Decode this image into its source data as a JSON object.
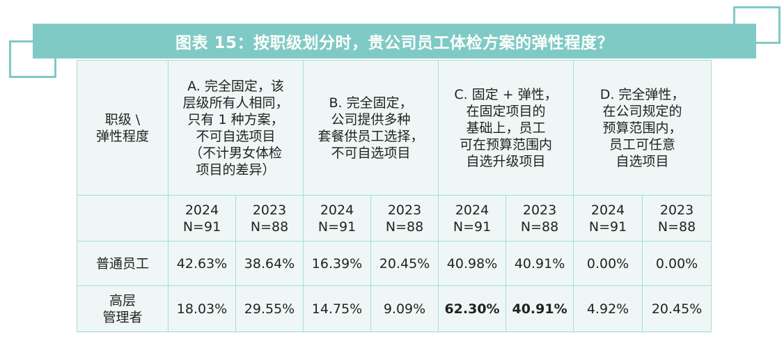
{
  "title": "图表 15：按职级划分时，贵公司员工体检方案的弹性程度？",
  "corner_label": "职级 \\\n弹性程度",
  "options": [
    "A. 完全固定，该\n层级所有人相同，\n只有 1 种方案，\n不可自选项目\n（不计男女体检\n项目的差异）",
    "B. 完全固定，\n公司提供多种\n套餐供员工选择，\n不可自选项目",
    "C. 固定 + 弹性，\n在固定项目的\n基础上，员工\n可在预算范围内\n自选升级项目",
    "D. 完全弹性，\n在公司规定的\n预算范围内，\n员工可任意\n自选项目"
  ],
  "year_headers": [
    "2024\nN=91",
    "2023\nN=88"
  ],
  "rows": [
    {
      "label": "普通员工",
      "values": [
        "42.63%",
        "38.64%",
        "16.39%",
        "20.45%",
        "40.98%",
        "40.91%",
        "0.00%",
        "0.00%"
      ]
    },
    {
      "label": "高层\n管理者",
      "values": [
        "18.03%",
        "29.55%",
        "14.75%",
        "9.09%",
        "62.30%",
        "40.91%",
        "4.92%",
        "20.45%"
      ]
    }
  ],
  "colors": {
    "accent": "#7fcac4",
    "table_bg": "#eef7f5",
    "border": "#a8dcd7"
  }
}
